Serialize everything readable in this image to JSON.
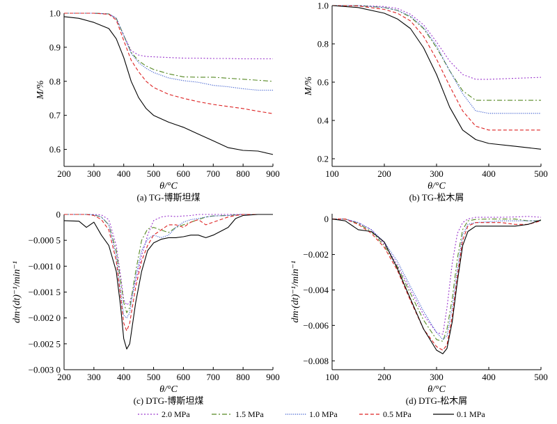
{
  "legend": [
    {
      "label": "2.0 MPa",
      "color": "#9933cc",
      "dash": "2,2.5"
    },
    {
      "label": "1.5 MPa",
      "color": "#558822",
      "dash": "7,3,2,3"
    },
    {
      "label": "1.0 MPa",
      "color": "#3355cc",
      "dash": "1.2,1.6"
    },
    {
      "label": "0.5 MPa",
      "color": "#dd2222",
      "dash": "5,3"
    },
    {
      "label": "0.1 MPa",
      "color": "#000000",
      "dash": ""
    }
  ],
  "chart_data": [
    {
      "type": "line",
      "caption": "(a) TG-博斯坦煤",
      "xlabel": "θ/°C",
      "ylabel": "M/%",
      "xlim": [
        200,
        900
      ],
      "ylim": [
        0.55,
        1.0
      ],
      "xticks": [
        "200",
        "300",
        "400",
        "500",
        "600",
        "700",
        "800",
        "900"
      ],
      "yticks": [
        "0.6",
        "0.7",
        "0.8",
        "0.9",
        "1.0"
      ],
      "x": [
        200,
        250,
        300,
        350,
        375,
        400,
        425,
        450,
        475,
        500,
        550,
        600,
        650,
        700,
        750,
        800,
        850,
        900
      ],
      "series": [
        {
          "name": "2.0 MPa",
          "values": [
            1.0,
            1.0,
            1.0,
            0.998,
            0.985,
            0.935,
            0.89,
            0.877,
            0.873,
            0.872,
            0.87,
            0.868,
            0.868,
            0.867,
            0.867,
            0.866,
            0.866,
            0.866
          ]
        },
        {
          "name": "1.5 MPa",
          "values": [
            1.0,
            1.0,
            1.0,
            0.998,
            0.985,
            0.935,
            0.885,
            0.86,
            0.845,
            0.835,
            0.822,
            0.813,
            0.812,
            0.812,
            0.809,
            0.806,
            0.803,
            0.8
          ]
        },
        {
          "name": "1.0 MPa",
          "values": [
            1.0,
            1.0,
            1.0,
            0.998,
            0.985,
            0.935,
            0.882,
            0.855,
            0.838,
            0.826,
            0.81,
            0.802,
            0.797,
            0.788,
            0.784,
            0.778,
            0.774,
            0.774
          ]
        },
        {
          "name": "0.5 MPa",
          "values": [
            1.0,
            1.0,
            1.0,
            0.997,
            0.98,
            0.92,
            0.862,
            0.828,
            0.8,
            0.782,
            0.762,
            0.75,
            0.74,
            0.732,
            0.726,
            0.72,
            0.712,
            0.705
          ]
        },
        {
          "name": "0.1 MPa",
          "values": [
            0.99,
            0.985,
            0.973,
            0.955,
            0.925,
            0.87,
            0.8,
            0.752,
            0.72,
            0.7,
            0.68,
            0.665,
            0.645,
            0.625,
            0.605,
            0.597,
            0.595,
            0.585
          ]
        }
      ]
    },
    {
      "type": "line",
      "caption": "(b) TG-松木屑",
      "xlabel": "θ/°C",
      "ylabel": "M/%",
      "xlim": [
        100,
        500
      ],
      "ylim": [
        0.16,
        1.0
      ],
      "xticks": [
        "100",
        "200",
        "300",
        "400",
        "500"
      ],
      "yticks": [
        "0.2",
        "0.4",
        "0.6",
        "0.8",
        "1.0"
      ],
      "x": [
        100,
        150,
        200,
        225,
        250,
        275,
        300,
        325,
        350,
        375,
        400,
        450,
        500
      ],
      "series": [
        {
          "name": "2.0 MPa",
          "values": [
            1.0,
            1.0,
            0.995,
            0.985,
            0.955,
            0.9,
            0.81,
            0.71,
            0.64,
            0.615,
            0.615,
            0.62,
            0.625
          ]
        },
        {
          "name": "1.5 MPa",
          "values": [
            1.0,
            1.0,
            0.99,
            0.975,
            0.94,
            0.88,
            0.78,
            0.66,
            0.555,
            0.505,
            0.505,
            0.505,
            0.505
          ]
        },
        {
          "name": "1.0 MPa",
          "values": [
            1.0,
            1.0,
            0.99,
            0.975,
            0.945,
            0.885,
            0.79,
            0.66,
            0.54,
            0.45,
            0.437,
            0.437,
            0.437
          ]
        },
        {
          "name": "0.5 MPa",
          "values": [
            1.0,
            0.998,
            0.98,
            0.96,
            0.92,
            0.84,
            0.72,
            0.58,
            0.45,
            0.37,
            0.35,
            0.35,
            0.35
          ]
        },
        {
          "name": "0.1 MPa",
          "values": [
            1.0,
            0.99,
            0.96,
            0.93,
            0.88,
            0.78,
            0.64,
            0.47,
            0.35,
            0.3,
            0.28,
            0.265,
            0.25
          ]
        }
      ]
    },
    {
      "type": "line",
      "caption": "(c) DTG-博斯坦煤",
      "xlabel": "θ/°C",
      "ylabel": "dm·(dt)⁻¹/min⁻¹",
      "xlim": [
        200,
        900
      ],
      "ylim": [
        -0.003,
        0
      ],
      "xticks": [
        "200",
        "300",
        "400",
        "500",
        "600",
        "700",
        "800",
        "900"
      ],
      "yticks": [
        "0",
        "−0.000 5",
        "−0.001 0",
        "−0.001 5",
        "−0.002 0",
        "−0.002 5",
        "−0.003 0"
      ],
      "x": [
        200,
        250,
        275,
        300,
        325,
        350,
        375,
        390,
        400,
        410,
        420,
        440,
        460,
        480,
        500,
        525,
        550,
        575,
        600,
        625,
        650,
        675,
        700,
        750,
        775,
        800,
        850,
        900
      ],
      "series": [
        {
          "name": "2.0 MPa",
          "values": [
            0,
            0,
            0,
            0,
            -1e-05,
            -0.0001,
            -0.0006,
            -0.0012,
            -0.00165,
            -0.00175,
            -0.0017,
            -0.0013,
            -0.0008,
            -0.0004,
            -0.00012,
            -5e-05,
            -3e-05,
            -4e-05,
            -3e-05,
            -2e-05,
            0,
            0,
            0,
            0,
            0,
            0,
            0,
            0
          ]
        },
        {
          "name": "1.5 MPa",
          "values": [
            0,
            0,
            0,
            -1e-05,
            -5e-05,
            -0.0002,
            -0.0007,
            -0.0013,
            -0.0017,
            -0.0019,
            -0.0018,
            -0.0011,
            -0.0005,
            -0.00028,
            -0.00025,
            -0.0003,
            -0.00035,
            -0.00025,
            -0.0002,
            -0.00015,
            -0.0001,
            -5e-05,
            -3e-05,
            -2e-05,
            -1e-05,
            0,
            0,
            0
          ]
        },
        {
          "name": "1.0 MPa",
          "values": [
            0,
            0,
            0,
            -1e-05,
            -5e-05,
            -0.0002,
            -0.0008,
            -0.0015,
            -0.00195,
            -0.002,
            -0.0019,
            -0.0012,
            -0.0007,
            -0.00048,
            -0.0004,
            -0.00045,
            -0.0004,
            -0.00025,
            -0.00015,
            -0.0001,
            -8e-05,
            -5e-05,
            -3e-05,
            -2e-05,
            -1e-05,
            0,
            0,
            0
          ]
        },
        {
          "name": "0.5 MPa",
          "values": [
            0,
            0,
            0,
            -2e-05,
            -0.0001,
            -0.0003,
            -0.0009,
            -0.0016,
            -0.0021,
            -0.00225,
            -0.0021,
            -0.0014,
            -0.0009,
            -0.0006,
            -0.0004,
            -0.0003,
            -0.0002,
            -0.0002,
            -0.00025,
            -0.00015,
            -0.0001,
            -0.0002,
            -0.00015,
            -5e-05,
            -2e-05,
            0,
            0,
            0
          ]
        },
        {
          "name": "0.1 MPa",
          "values": [
            -0.00012,
            -0.00013,
            -0.00025,
            -0.00015,
            -0.0004,
            -0.0006,
            -0.0011,
            -0.0018,
            -0.0024,
            -0.0026,
            -0.0025,
            -0.0017,
            -0.0011,
            -0.0007,
            -0.00055,
            -0.00048,
            -0.00045,
            -0.00045,
            -0.00043,
            -0.0004,
            -0.0004,
            -0.00045,
            -0.0004,
            -0.00025,
            -8e-05,
            -2e-05,
            0,
            0
          ]
        }
      ]
    },
    {
      "type": "line",
      "caption": "(d) DTG-松木屑",
      "xlabel": "θ/°C",
      "ylabel": "dm·(dt)⁻¹/min⁻¹",
      "xlim": [
        100,
        500
      ],
      "ylim": [
        -0.0085,
        0.0003
      ],
      "xticks": [
        "100",
        "200",
        "300",
        "400",
        "500"
      ],
      "yticks": [
        "0",
        "−0.002",
        "−0.004",
        "−0.006",
        "−0.008"
      ],
      "x": [
        100,
        125,
        150,
        175,
        200,
        225,
        250,
        275,
        300,
        312,
        320,
        330,
        340,
        350,
        360,
        375,
        400,
        425,
        450,
        475,
        500
      ],
      "series": [
        {
          "name": "2.0 MPa",
          "values": [
            0,
            0,
            -0.0002,
            -0.0006,
            -0.0014,
            -0.0026,
            -0.004,
            -0.0054,
            -0.0064,
            -0.0065,
            -0.005,
            -0.0025,
            -0.0008,
            -0.0002,
            0,
            0.0001,
            0.0001,
            0.0001,
            0.00012,
            0.00015,
            0.0001
          ]
        },
        {
          "name": "1.5 MPa",
          "values": [
            0,
            0,
            -0.00025,
            -0.0007,
            -0.0015,
            -0.0027,
            -0.0042,
            -0.0057,
            -0.0068,
            -0.0069,
            -0.0062,
            -0.0045,
            -0.0022,
            -0.0006,
            -0.0001,
            -2e-05,
            0,
            0,
            0,
            -0.0001,
            -0.0001
          ]
        },
        {
          "name": "1.0 MPa",
          "values": [
            0,
            0,
            -0.0002,
            -0.0006,
            -0.0013,
            -0.0024,
            -0.0038,
            -0.0052,
            -0.0064,
            -0.0068,
            -0.0066,
            -0.005,
            -0.0028,
            -0.0009,
            -0.0003,
            -0.0002,
            -0.00015,
            -0.0001,
            -0.0001,
            -0.0001,
            -0.0001
          ]
        },
        {
          "name": "0.5 MPa",
          "values": [
            0,
            0,
            -0.0003,
            -0.0008,
            -0.0016,
            -0.0029,
            -0.0046,
            -0.0062,
            -0.0072,
            -0.0074,
            -0.0071,
            -0.0055,
            -0.0032,
            -0.0012,
            -0.0004,
            -0.0002,
            -0.0002,
            -0.0002,
            -0.0003,
            -0.0003,
            -0.0001
          ]
        },
        {
          "name": "0.1 MPa",
          "values": [
            0,
            -0.0001,
            -0.0006,
            -0.0007,
            -0.0013,
            -0.0028,
            -0.0045,
            -0.0062,
            -0.0074,
            -0.0076,
            -0.0073,
            -0.0058,
            -0.0035,
            -0.0015,
            -0.0007,
            -0.0004,
            -0.0004,
            -0.0004,
            -0.0004,
            -0.0003,
            -5e-05
          ]
        }
      ]
    }
  ]
}
